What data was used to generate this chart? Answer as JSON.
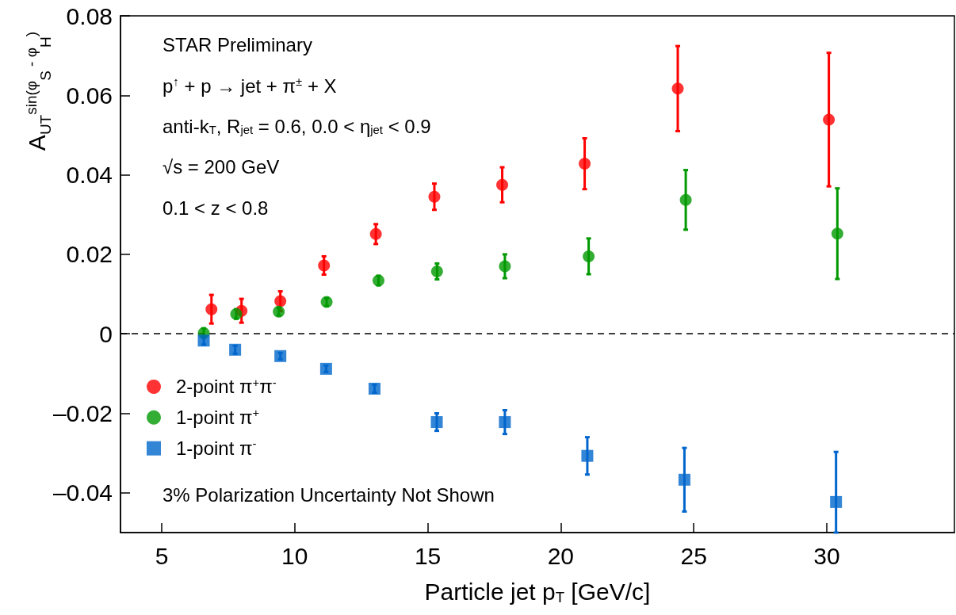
{
  "chart_data": {
    "type": "scatter",
    "xlabel": "Particle jet p$_{T}$ [GeV/c]",
    "ylabel": "A$_{UT}$$^{sin(φ}$$_{S}$$^{ - φ}$$_{H}$$^{)}$",
    "annotations": [
      "STAR Preliminary",
      "p$^{↑}$ + p → jet + π$^{±}$ + X",
      "anti-k$_{T}$, R$_{jet}$ = 0.6, 0.0 < η$_{jet}$ < 0.9",
      "√s = 200 GeV",
      "0.1 < z < 0.8",
      "3% Polarization Uncertainty Not Shown"
    ],
    "xlim": [
      3.45,
      34.8
    ],
    "xticks": [
      5,
      10,
      15,
      20,
      25,
      30
    ],
    "ylim": [
      -0.05,
      0.08
    ],
    "yticks": [
      {
        "value": -0.04,
        "label": "–0.04"
      },
      {
        "value": -0.02,
        "label": "–0.02"
      },
      0,
      0.02,
      0.04,
      0.06,
      0.08
    ],
    "grid": false,
    "legend": "bottom left",
    "ref_lines": [
      {
        "axis": "y",
        "value": 0,
        "line_style": "dashed",
        "color": "#000000"
      }
    ],
    "series": [
      {
        "name": "2-point π$^{+}$π$^{-}$",
        "color": "#ff0000",
        "marker": "circle",
        "x": [
          6.87,
          8.0,
          9.46,
          11.1,
          13.05,
          15.25,
          17.8,
          20.9,
          24.4,
          30.08
        ],
        "values": [
          0.0062,
          0.0058,
          0.0082,
          0.0172,
          0.0251,
          0.0345,
          0.0375,
          0.0428,
          0.0617,
          0.0539
        ],
        "errors": [
          0.0036,
          0.003,
          0.0025,
          0.0023,
          0.0025,
          0.0033,
          0.0044,
          0.0064,
          0.0107,
          0.0168
        ]
      },
      {
        "name": "1-point π$^{+}$",
        "color": "#009900",
        "marker": "circle",
        "x": [
          6.58,
          7.8,
          9.4,
          11.2,
          13.15,
          15.35,
          17.9,
          21.05,
          24.7,
          30.4
        ],
        "values": [
          0.0002,
          0.005,
          0.0056,
          0.008,
          0.0134,
          0.0157,
          0.017,
          0.0195,
          0.0337,
          0.0252
        ],
        "errors": [
          0.0012,
          0.0012,
          0.001,
          0.001,
          0.0012,
          0.002,
          0.003,
          0.0045,
          0.0075,
          0.0114
        ]
      },
      {
        "name": "1-point π$^{-}$",
        "color": "#0066cc",
        "marker": "square",
        "x": [
          6.58,
          7.76,
          9.46,
          11.18,
          13.0,
          15.34,
          17.9,
          21.0,
          24.65,
          30.35
        ],
        "values": [
          -0.0017,
          -0.004,
          -0.0056,
          -0.0088,
          -0.0138,
          -0.0222,
          -0.0222,
          -0.0307,
          -0.0367,
          -0.0423
        ],
        "errors": [
          0.001,
          0.001,
          0.0008,
          0.0008,
          0.001,
          0.0022,
          0.003,
          0.0047,
          0.008,
          [
            -0.05,
            -0.0297
          ]
        ]
      }
    ]
  }
}
